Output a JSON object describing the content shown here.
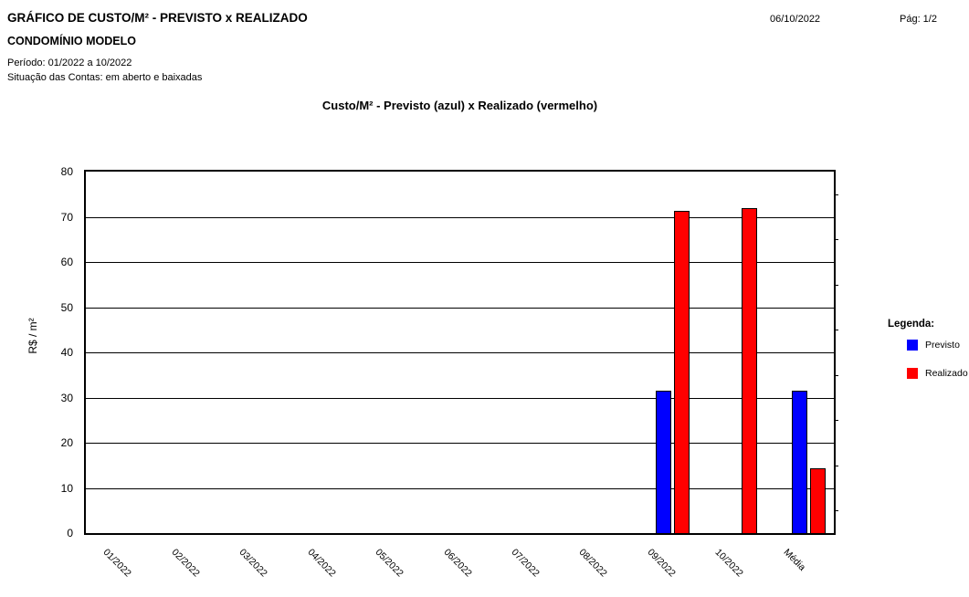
{
  "header": {
    "title": "GRÁFICO DE CUSTO/M² - PREVISTO x REALIZADO",
    "subtitle": "CONDOMÍNIO MODELO",
    "period": "Período: 01/2022 a 10/2022",
    "accounts_status": "Situação das Contas: em aberto e baixadas",
    "date": "06/10/2022",
    "page": "Pág: 1/2"
  },
  "legend": {
    "title": "Legenda:",
    "items": [
      {
        "label": "Previsto",
        "color": "#0000ff"
      },
      {
        "label": "Realizado",
        "color": "#ff0000"
      }
    ]
  },
  "chart_data": {
    "type": "bar",
    "title": "Custo/M² - Previsto (azul) x Realizado (vermelho)",
    "categories": [
      "01/2022",
      "02/2022",
      "03/2022",
      "04/2022",
      "05/2022",
      "06/2022",
      "07/2022",
      "08/2022",
      "09/2022",
      "10/2022",
      "Média"
    ],
    "series": [
      {
        "name": "Previsto",
        "color": "#0000ff",
        "values": [
          0,
          0,
          0,
          0,
          0,
          0,
          0,
          0,
          31.5,
          0,
          31.5
        ]
      },
      {
        "name": "Realizado",
        "color": "#ff0000",
        "values": [
          0,
          0,
          0,
          0,
          0,
          0,
          0,
          0,
          71.4,
          72.0,
          14.3
        ]
      }
    ],
    "xlabel": "",
    "ylabel": "R$ / m²",
    "ylim": [
      0,
      80
    ],
    "yticks": [
      0,
      10,
      20,
      30,
      40,
      50,
      60,
      70,
      80
    ],
    "minor_tick_step": 5,
    "grid": "horizontal",
    "legend_position": "right",
    "axis_color": "#000000",
    "background_color": "#ffffff"
  }
}
